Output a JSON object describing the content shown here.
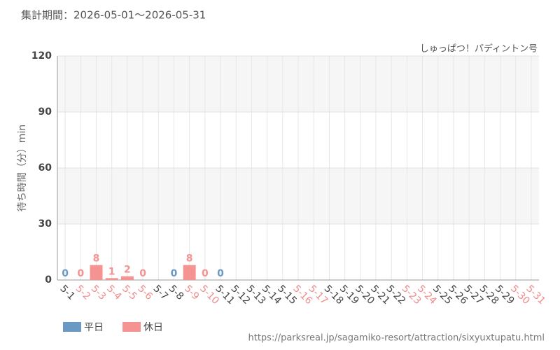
{
  "chart_data": {
    "type": "bar",
    "title": "集計期間：2026-05-01～2026-05-31",
    "subtitle": "しゅっぱつ！パディントン号",
    "y_label": "待ち時間（分）min",
    "source": "https://parksreal.jp/sagamiko-resort/attraction/sixyuxtupatu.html",
    "categories": [
      "5-1",
      "5-2",
      "5-3",
      "5-4",
      "5-5",
      "5-6",
      "5-7",
      "5-8",
      "5-9",
      "5-10",
      "5-11",
      "5-12",
      "5-13",
      "5-14",
      "5-15",
      "5-16",
      "5-17",
      "5-18",
      "5-19",
      "5-20",
      "5-21",
      "5-22",
      "5-23",
      "5-24",
      "5-25",
      "5-26",
      "5-27",
      "5-28",
      "5-29",
      "5-30",
      "5-31"
    ],
    "category_colors": [
      "#444",
      "#f08c8c",
      "#f08c8c",
      "#f08c8c",
      "#f08c8c",
      "#f08c8c",
      "#444",
      "#444",
      "#f08c8c",
      "#f08c8c",
      "#444",
      "#444",
      "#444",
      "#444",
      "#444",
      "#f08c8c",
      "#f08c8c",
      "#444",
      "#444",
      "#444",
      "#444",
      "#444",
      "#f08c8c",
      "#f08c8c",
      "#444",
      "#444",
      "#444",
      "#444",
      "#444",
      "#f08c8c",
      "#f08c8c"
    ],
    "series": [
      {
        "name": "平日",
        "color": "#6a9ac4",
        "values": [
          0,
          null,
          null,
          null,
          null,
          null,
          null,
          0,
          null,
          null,
          0,
          null,
          null,
          null,
          null,
          null,
          null,
          null,
          null,
          null,
          null,
          null,
          null,
          null,
          null,
          null,
          null,
          null,
          null,
          null,
          null
        ]
      },
      {
        "name": "休日",
        "color": "#f59393",
        "values": [
          null,
          0,
          8,
          1,
          2,
          0,
          null,
          null,
          8,
          0,
          null,
          null,
          null,
          null,
          null,
          null,
          null,
          null,
          null,
          null,
          null,
          null,
          null,
          null,
          null,
          null,
          null,
          null,
          null,
          null,
          null
        ]
      }
    ],
    "ylim": [
      0,
      120
    ],
    "yticks": [
      0,
      30,
      60,
      90,
      120
    ],
    "grid": true
  }
}
